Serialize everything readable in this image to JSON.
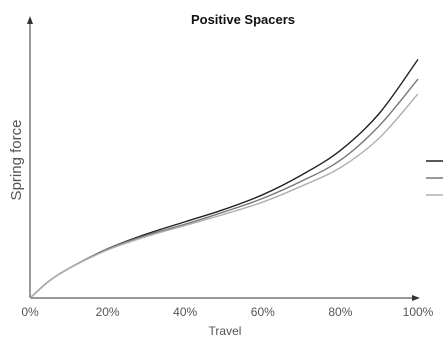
{
  "chart_data": {
    "type": "line",
    "title": "Positive Spacers",
    "xlabel": "Travel",
    "ylabel": "Spring force",
    "x_ticks": [
      "0%",
      "20%",
      "40%",
      "60%",
      "80%",
      "100%"
    ],
    "xlim": [
      0,
      100
    ],
    "ylim": [
      0,
      100
    ],
    "grid": false,
    "legend": "right",
    "series": [
      {
        "color": "#222222",
        "x": [
          0,
          5,
          10,
          20,
          30,
          40,
          50,
          60,
          70,
          80,
          90,
          100
        ],
        "y": [
          0,
          7,
          12,
          20,
          26,
          31,
          36,
          42,
          50,
          60,
          75,
          97
        ]
      },
      {
        "color": "#777777",
        "x": [
          0,
          5,
          10,
          20,
          30,
          40,
          50,
          60,
          70,
          80,
          90,
          100
        ],
        "y": [
          0,
          7,
          12,
          20,
          25.5,
          30,
          35,
          40.5,
          47.5,
          56,
          70,
          89
        ]
      },
      {
        "color": "#b0b0b0",
        "x": [
          0,
          5,
          10,
          20,
          30,
          40,
          50,
          60,
          70,
          80,
          90,
          100
        ],
        "y": [
          0,
          7,
          12,
          19.5,
          25,
          29.5,
          34,
          39,
          45.5,
          53,
          65,
          83
        ]
      }
    ]
  }
}
